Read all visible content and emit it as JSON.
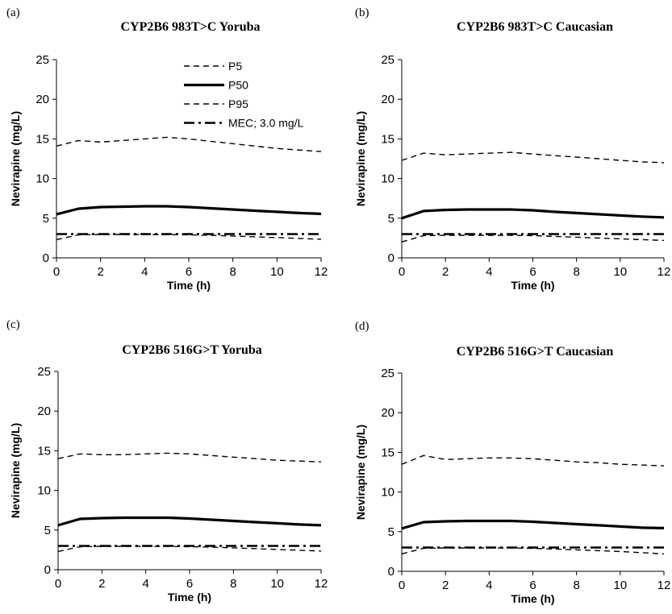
{
  "chart_data": [
    {
      "type": "line",
      "panel_label": "(a)",
      "title": "CYP2B6 983T>C Yoruba",
      "xlabel": "Time (h)",
      "ylabel": "Nevirapine (mg/L)",
      "xlim": [
        0,
        12
      ],
      "ylim": [
        0,
        25
      ],
      "x_ticks": [
        "0",
        "2",
        "4",
        "6",
        "8",
        "10",
        "12"
      ],
      "y_ticks": [
        "0",
        "5",
        "10",
        "15",
        "20",
        "25"
      ],
      "grid": false,
      "legend": true,
      "x": [
        0,
        1,
        2,
        3,
        4,
        5,
        6,
        7,
        8,
        9,
        10,
        11,
        12
      ],
      "series": [
        {
          "name": "P5",
          "style": "dashed",
          "values": [
            2.3,
            2.9,
            2.95,
            2.95,
            2.95,
            2.95,
            2.9,
            2.85,
            2.75,
            2.65,
            2.55,
            2.45,
            2.35
          ]
        },
        {
          "name": "P50",
          "style": "solid",
          "values": [
            5.5,
            6.2,
            6.4,
            6.45,
            6.5,
            6.5,
            6.4,
            6.25,
            6.1,
            5.95,
            5.8,
            5.65,
            5.55
          ]
        },
        {
          "name": "P95",
          "style": "dashed",
          "values": [
            14.1,
            14.8,
            14.6,
            14.8,
            15.0,
            15.2,
            15.0,
            14.7,
            14.4,
            14.1,
            13.8,
            13.6,
            13.4
          ]
        },
        {
          "name": "MEC; 3.0 mg/L",
          "style": "dash-dot",
          "values": [
            3.0,
            3.0,
            3.0,
            3.0,
            3.0,
            3.0,
            3.0,
            3.0,
            3.0,
            3.0,
            3.0,
            3.0,
            3.0
          ]
        }
      ]
    },
    {
      "type": "line",
      "panel_label": "(b)",
      "title": "CYP2B6 983T>C Caucasian",
      "xlabel": "Time (h)",
      "ylabel": "Nevirapine (mg/L)",
      "xlim": [
        0,
        12
      ],
      "ylim": [
        0,
        25
      ],
      "x_ticks": [
        "0",
        "2",
        "4",
        "6",
        "8",
        "10",
        "12"
      ],
      "y_ticks": [
        "0",
        "5",
        "10",
        "15",
        "20",
        "25"
      ],
      "grid": false,
      "legend": false,
      "x": [
        0,
        1,
        2,
        3,
        4,
        5,
        6,
        7,
        8,
        9,
        10,
        11,
        12
      ],
      "series": [
        {
          "name": "P5",
          "style": "dashed",
          "values": [
            2.0,
            2.8,
            2.85,
            2.85,
            2.85,
            2.85,
            2.8,
            2.7,
            2.6,
            2.5,
            2.4,
            2.3,
            2.2
          ]
        },
        {
          "name": "P50",
          "style": "solid",
          "values": [
            5.0,
            5.9,
            6.05,
            6.1,
            6.1,
            6.1,
            6.0,
            5.8,
            5.65,
            5.5,
            5.35,
            5.2,
            5.1
          ]
        },
        {
          "name": "P95",
          "style": "dashed",
          "values": [
            12.3,
            13.2,
            13.0,
            13.1,
            13.2,
            13.3,
            13.1,
            12.9,
            12.7,
            12.5,
            12.3,
            12.1,
            12.0
          ]
        },
        {
          "name": "MEC; 3.0 mg/L",
          "style": "dash-dot",
          "values": [
            3.0,
            3.0,
            3.0,
            3.0,
            3.0,
            3.0,
            3.0,
            3.0,
            3.0,
            3.0,
            3.0,
            3.0,
            3.0
          ]
        }
      ]
    },
    {
      "type": "line",
      "panel_label": "(c)",
      "title": "CYP2B6 516G>T Yoruba",
      "xlabel": "Time (h)",
      "ylabel": "Nevirapine (mg/L)",
      "xlim": [
        0,
        12
      ],
      "ylim": [
        0,
        25
      ],
      "x_ticks": [
        "0",
        "2",
        "4",
        "6",
        "8",
        "10",
        "12"
      ],
      "y_ticks": [
        "0",
        "5",
        "10",
        "15",
        "20",
        "25"
      ],
      "grid": false,
      "legend": false,
      "x": [
        0,
        1,
        2,
        3,
        4,
        5,
        6,
        7,
        8,
        9,
        10,
        11,
        12
      ],
      "series": [
        {
          "name": "P5",
          "style": "dashed",
          "values": [
            2.3,
            2.9,
            2.95,
            2.95,
            2.95,
            2.95,
            2.9,
            2.85,
            2.75,
            2.65,
            2.55,
            2.45,
            2.35
          ]
        },
        {
          "name": "P50",
          "style": "solid",
          "values": [
            5.6,
            6.4,
            6.5,
            6.55,
            6.55,
            6.55,
            6.45,
            6.3,
            6.15,
            6.0,
            5.85,
            5.7,
            5.6
          ]
        },
        {
          "name": "P95",
          "style": "dashed",
          "values": [
            14.0,
            14.6,
            14.5,
            14.5,
            14.6,
            14.7,
            14.6,
            14.4,
            14.2,
            14.0,
            13.8,
            13.7,
            13.6
          ]
        },
        {
          "name": "MEC; 3.0 mg/L",
          "style": "dash-dot",
          "values": [
            3.0,
            3.0,
            3.0,
            3.0,
            3.0,
            3.0,
            3.0,
            3.0,
            3.0,
            3.0,
            3.0,
            3.0,
            3.0
          ]
        }
      ]
    },
    {
      "type": "line",
      "panel_label": "(d)",
      "title": "CYP2B6 516G>T Caucasian",
      "xlabel": "Time (h)",
      "ylabel": "Nevirapine (mg/L)",
      "xlim": [
        0,
        12
      ],
      "ylim": [
        0,
        25
      ],
      "x_ticks": [
        "0",
        "2",
        "4",
        "6",
        "8",
        "10",
        "12"
      ],
      "y_ticks": [
        "0",
        "5",
        "10",
        "15",
        "20",
        "25"
      ],
      "grid": false,
      "legend": false,
      "x": [
        0,
        1,
        2,
        3,
        4,
        5,
        6,
        7,
        8,
        9,
        10,
        11,
        12
      ],
      "series": [
        {
          "name": "P5",
          "style": "dashed",
          "values": [
            2.2,
            2.9,
            2.95,
            2.95,
            2.95,
            2.95,
            2.9,
            2.8,
            2.7,
            2.6,
            2.5,
            2.35,
            2.2
          ]
        },
        {
          "name": "P50",
          "style": "solid",
          "values": [
            5.4,
            6.2,
            6.3,
            6.35,
            6.35,
            6.35,
            6.25,
            6.1,
            5.95,
            5.8,
            5.65,
            5.5,
            5.45
          ]
        },
        {
          "name": "P95",
          "style": "dashed",
          "values": [
            13.5,
            14.6,
            14.1,
            14.2,
            14.3,
            14.3,
            14.2,
            14.0,
            13.8,
            13.7,
            13.5,
            13.4,
            13.3
          ]
        },
        {
          "name": "MEC; 3.0 mg/L",
          "style": "dash-dot",
          "values": [
            3.0,
            3.0,
            3.0,
            3.0,
            3.0,
            3.0,
            3.0,
            3.0,
            3.0,
            3.0,
            3.0,
            3.0,
            3.0
          ]
        }
      ]
    }
  ]
}
